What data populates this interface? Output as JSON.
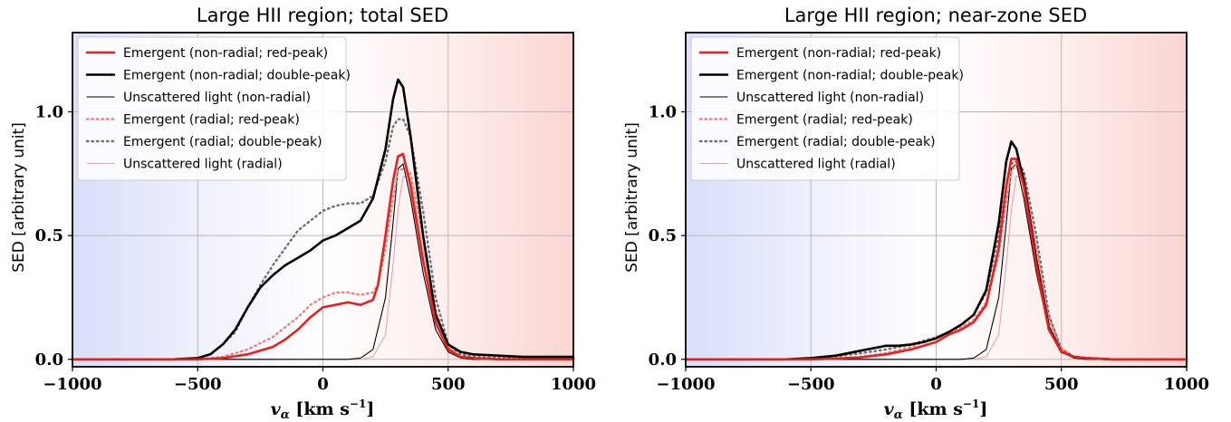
{
  "chart_data": [
    {
      "type": "line",
      "title": "Large HII region; total SED",
      "xlabel_main": "v",
      "xlabel_sub": "α",
      "xlabel_units": "[km s",
      "xlabel_exp": "−1",
      "xlabel_close": "]",
      "ylabel": "SED [arbitrary unit]",
      "xlim": [
        -1000,
        1000
      ],
      "ylim": [
        -0.03,
        1.32
      ],
      "xticks": [
        -1000,
        -500,
        0,
        500,
        1000
      ],
      "xtick_labels": [
        "−1000",
        "−500",
        "0",
        "500",
        "1000"
      ],
      "yticks": [
        0.0,
        0.5,
        1.0
      ],
      "ytick_labels": [
        "0.0",
        "0.5",
        "1.0"
      ],
      "grid": true,
      "background": "horizontal gradient blue (left) to red (right)",
      "legend_position": "upper-left",
      "series": [
        {
          "name": "Emergent (non-radial; red-peak)",
          "color": "#e8201c",
          "style": "solid",
          "width": "thick",
          "x": [
            -1000,
            -500,
            -400,
            -300,
            -200,
            -150,
            -100,
            -50,
            0,
            50,
            100,
            150,
            200,
            220,
            250,
            280,
            300,
            320,
            350,
            400,
            450,
            500,
            550,
            600,
            700,
            800,
            1000
          ],
          "y": [
            0,
            0,
            0.005,
            0.02,
            0.05,
            0.08,
            0.12,
            0.17,
            0.21,
            0.22,
            0.23,
            0.22,
            0.24,
            0.3,
            0.5,
            0.72,
            0.82,
            0.83,
            0.7,
            0.4,
            0.15,
            0.04,
            0.01,
            0.005,
            0,
            0,
            0
          ]
        },
        {
          "name": "Emergent (non-radial; double-peak)",
          "color": "#000000",
          "style": "solid",
          "width": "thick",
          "x": [
            -1000,
            -600,
            -500,
            -450,
            -400,
            -350,
            -300,
            -250,
            -200,
            -150,
            -100,
            -50,
            0,
            50,
            100,
            150,
            200,
            250,
            280,
            300,
            320,
            350,
            400,
            450,
            500,
            550,
            600,
            700,
            800,
            1000
          ],
          "y": [
            0,
            0,
            0.005,
            0.02,
            0.06,
            0.12,
            0.21,
            0.29,
            0.34,
            0.38,
            0.41,
            0.44,
            0.48,
            0.5,
            0.53,
            0.56,
            0.65,
            0.85,
            1.05,
            1.13,
            1.1,
            0.9,
            0.5,
            0.18,
            0.06,
            0.03,
            0.02,
            0.015,
            0.01,
            0.01
          ]
        },
        {
          "name": "Unscattered light (non-radial)",
          "color": "#000000",
          "style": "solid",
          "width": "thin",
          "x": [
            -1000,
            0,
            100,
            150,
            200,
            250,
            280,
            300,
            320,
            350,
            400,
            450,
            500,
            550,
            600,
            1000
          ],
          "y": [
            0,
            0,
            0,
            0.005,
            0.04,
            0.25,
            0.55,
            0.77,
            0.79,
            0.65,
            0.35,
            0.12,
            0.03,
            0.005,
            0,
            0
          ]
        },
        {
          "name": "Emergent (radial; red-peak)",
          "color": "#f08080",
          "style": "dotted",
          "width": "thick",
          "x": [
            -1000,
            -500,
            -400,
            -300,
            -200,
            -150,
            -100,
            -50,
            0,
            50,
            100,
            150,
            200,
            220,
            250,
            280,
            300,
            320,
            350,
            400,
            450,
            500,
            550,
            600,
            700,
            800,
            1000
          ],
          "y": [
            0,
            0,
            0.01,
            0.04,
            0.09,
            0.13,
            0.17,
            0.22,
            0.25,
            0.27,
            0.27,
            0.26,
            0.27,
            0.3,
            0.45,
            0.65,
            0.76,
            0.77,
            0.75,
            0.5,
            0.2,
            0.05,
            0.01,
            0.005,
            0,
            0,
            0
          ]
        },
        {
          "name": "Emergent (radial; double-peak)",
          "color": "#707070",
          "style": "dotted",
          "width": "thick",
          "x": [
            -1000,
            -600,
            -500,
            -450,
            -400,
            -350,
            -300,
            -250,
            -200,
            -150,
            -100,
            -50,
            0,
            50,
            100,
            150,
            200,
            250,
            280,
            300,
            320,
            350,
            400,
            450,
            500,
            550,
            600,
            700,
            800,
            1000
          ],
          "y": [
            0,
            0,
            0.005,
            0.02,
            0.06,
            0.11,
            0.21,
            0.3,
            0.38,
            0.45,
            0.52,
            0.56,
            0.6,
            0.62,
            0.63,
            0.63,
            0.66,
            0.8,
            0.94,
            0.97,
            0.97,
            0.9,
            0.6,
            0.25,
            0.06,
            0.02,
            0.01,
            0.005,
            0.005,
            0.005
          ]
        },
        {
          "name": "Unscattered light (radial)",
          "color": "#f4a0a0",
          "style": "solid",
          "width": "thin",
          "x": [
            -1000,
            0,
            150,
            200,
            250,
            280,
            300,
            320,
            350,
            400,
            450,
            500,
            550,
            600,
            1000
          ],
          "y": [
            0,
            0,
            0,
            0.01,
            0.1,
            0.38,
            0.6,
            0.74,
            0.73,
            0.45,
            0.18,
            0.05,
            0.01,
            0,
            0
          ]
        }
      ]
    },
    {
      "type": "line",
      "title": "Large HII region; near-zone SED",
      "xlabel_main": "v",
      "xlabel_sub": "α",
      "xlabel_units": "[km s",
      "xlabel_exp": "−1",
      "xlabel_close": "]",
      "ylabel": "SED [arbitrary unit]",
      "xlim": [
        -1000,
        1000
      ],
      "ylim": [
        -0.03,
        1.32
      ],
      "xticks": [
        -1000,
        -500,
        0,
        500,
        1000
      ],
      "xtick_labels": [
        "−1000",
        "−500",
        "0",
        "500",
        "1000"
      ],
      "yticks": [
        0.0,
        0.5,
        1.0
      ],
      "ytick_labels": [
        "0.0",
        "0.5",
        "1.0"
      ],
      "grid": true,
      "background": "horizontal gradient blue (left) to red (right)",
      "legend_position": "upper-left",
      "series": [
        {
          "name": "Emergent (non-radial; red-peak)",
          "color": "#e8201c",
          "style": "solid",
          "width": "thick",
          "x": [
            -1000,
            -500,
            -400,
            -300,
            -200,
            -100,
            0,
            50,
            100,
            150,
            200,
            250,
            280,
            300,
            320,
            350,
            400,
            450,
            500,
            550,
            600,
            700,
            1000
          ],
          "y": [
            0,
            0,
            0.003,
            0.008,
            0.02,
            0.04,
            0.07,
            0.1,
            0.12,
            0.15,
            0.22,
            0.45,
            0.7,
            0.81,
            0.81,
            0.7,
            0.38,
            0.12,
            0.03,
            0.01,
            0.005,
            0,
            0
          ]
        },
        {
          "name": "Emergent (non-radial; double-peak)",
          "color": "#000000",
          "style": "solid",
          "width": "thick",
          "x": [
            -1000,
            -600,
            -500,
            -400,
            -300,
            -250,
            -200,
            -150,
            -100,
            -50,
            0,
            50,
            100,
            150,
            200,
            250,
            280,
            300,
            320,
            350,
            400,
            450,
            500,
            550,
            600,
            700,
            1000
          ],
          "y": [
            0,
            0,
            0.005,
            0.015,
            0.035,
            0.045,
            0.055,
            0.055,
            0.06,
            0.07,
            0.085,
            0.11,
            0.14,
            0.18,
            0.28,
            0.55,
            0.8,
            0.88,
            0.85,
            0.72,
            0.4,
            0.13,
            0.03,
            0.01,
            0.005,
            0,
            0
          ]
        },
        {
          "name": "Unscattered light (non-radial)",
          "color": "#000000",
          "style": "solid",
          "width": "thin",
          "x": [
            -1000,
            0,
            100,
            150,
            200,
            250,
            280,
            300,
            320,
            350,
            400,
            450,
            500,
            550,
            600,
            1000
          ],
          "y": [
            0,
            0,
            0,
            0.005,
            0.04,
            0.25,
            0.55,
            0.77,
            0.79,
            0.65,
            0.35,
            0.12,
            0.03,
            0.005,
            0,
            0
          ]
        },
        {
          "name": "Emergent (radial; red-peak)",
          "color": "#f08080",
          "style": "dotted",
          "width": "thick",
          "x": [
            -1000,
            -500,
            -400,
            -300,
            -200,
            -100,
            0,
            50,
            100,
            150,
            200,
            250,
            280,
            300,
            320,
            350,
            400,
            450,
            500,
            550,
            600,
            700,
            1000
          ],
          "y": [
            0,
            0,
            0.004,
            0.01,
            0.025,
            0.05,
            0.09,
            0.11,
            0.13,
            0.16,
            0.23,
            0.42,
            0.64,
            0.76,
            0.79,
            0.74,
            0.45,
            0.16,
            0.04,
            0.01,
            0.005,
            0,
            0
          ]
        },
        {
          "name": "Emergent (radial; double-peak)",
          "color": "#707070",
          "style": "dotted",
          "width": "thick",
          "x": [
            -1000,
            -600,
            -500,
            -400,
            -300,
            -200,
            -100,
            0,
            50,
            100,
            150,
            200,
            250,
            280,
            300,
            320,
            350,
            400,
            450,
            500,
            550,
            600,
            700,
            1000
          ],
          "y": [
            0,
            0,
            0.004,
            0.012,
            0.025,
            0.04,
            0.06,
            0.09,
            0.11,
            0.14,
            0.18,
            0.27,
            0.5,
            0.7,
            0.79,
            0.8,
            0.76,
            0.5,
            0.18,
            0.04,
            0.01,
            0.005,
            0,
            0
          ]
        },
        {
          "name": "Unscattered light (radial)",
          "color": "#f4a0a0",
          "style": "solid",
          "width": "thin",
          "x": [
            -1000,
            0,
            150,
            200,
            250,
            280,
            300,
            320,
            350,
            400,
            450,
            500,
            550,
            600,
            1000
          ],
          "y": [
            0,
            0,
            0,
            0.01,
            0.1,
            0.38,
            0.6,
            0.74,
            0.73,
            0.45,
            0.18,
            0.05,
            0.01,
            0,
            0
          ]
        }
      ]
    }
  ]
}
